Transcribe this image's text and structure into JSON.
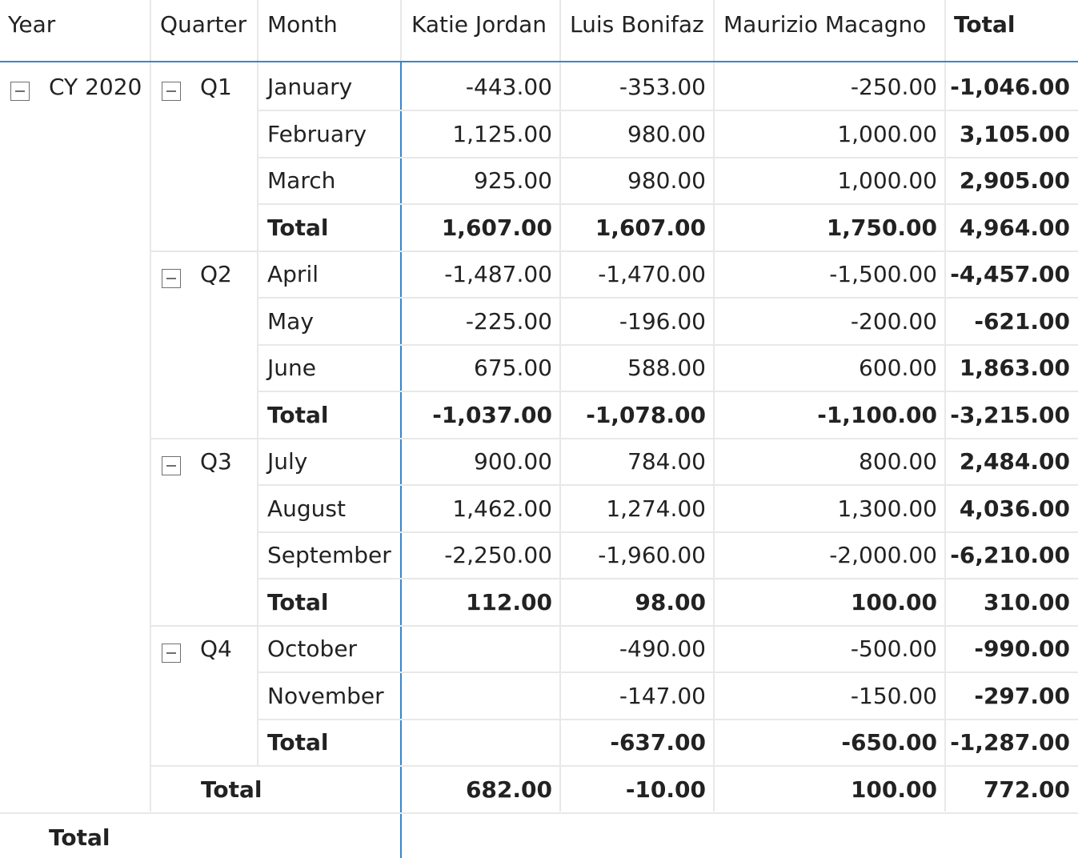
{
  "headers": {
    "year": "Year",
    "quarter": "Quarter",
    "month": "Month",
    "katie": "Katie Jordan",
    "luis": "Luis Bonifaz",
    "maurizio": "Maurizio Macagno",
    "total": "Total"
  },
  "year_label": "CY 2020",
  "quarters": [
    {
      "label": "Q1",
      "months": [
        {
          "month": "January",
          "katie": "-443.00",
          "luis": "-353.00",
          "maurizio": "-250.00",
          "total": "-1,046.00"
        },
        {
          "month": "February",
          "katie": "1,125.00",
          "luis": "980.00",
          "maurizio": "1,000.00",
          "total": "3,105.00"
        },
        {
          "month": "March",
          "katie": "925.00",
          "luis": "980.00",
          "maurizio": "1,000.00",
          "total": "2,905.00"
        }
      ],
      "subtotal": {
        "label": "Total",
        "katie": "1,607.00",
        "luis": "1,607.00",
        "maurizio": "1,750.00",
        "total": "4,964.00"
      }
    },
    {
      "label": "Q2",
      "months": [
        {
          "month": "April",
          "katie": "-1,487.00",
          "luis": "-1,470.00",
          "maurizio": "-1,500.00",
          "total": "-4,457.00"
        },
        {
          "month": "May",
          "katie": "-225.00",
          "luis": "-196.00",
          "maurizio": "-200.00",
          "total": "-621.00"
        },
        {
          "month": "June",
          "katie": "675.00",
          "luis": "588.00",
          "maurizio": "600.00",
          "total": "1,863.00"
        }
      ],
      "subtotal": {
        "label": "Total",
        "katie": "-1,037.00",
        "luis": "-1,078.00",
        "maurizio": "-1,100.00",
        "total": "-3,215.00"
      }
    },
    {
      "label": "Q3",
      "months": [
        {
          "month": "July",
          "katie": "900.00",
          "luis": "784.00",
          "maurizio": "800.00",
          "total": "2,484.00"
        },
        {
          "month": "August",
          "katie": "1,462.00",
          "luis": "1,274.00",
          "maurizio": "1,300.00",
          "total": "4,036.00"
        },
        {
          "month": "September",
          "katie": "-2,250.00",
          "luis": "-1,960.00",
          "maurizio": "-2,000.00",
          "total": "-6,210.00"
        }
      ],
      "subtotal": {
        "label": "Total",
        "katie": "112.00",
        "luis": "98.00",
        "maurizio": "100.00",
        "total": "310.00"
      }
    },
    {
      "label": "Q4",
      "months": [
        {
          "month": "October",
          "katie": "",
          "luis": "-490.00",
          "maurizio": "-500.00",
          "total": "-990.00"
        },
        {
          "month": "November",
          "katie": "",
          "luis": "-147.00",
          "maurizio": "-150.00",
          "total": "-297.00"
        }
      ],
      "subtotal": {
        "label": "Total",
        "katie": "",
        "luis": "-637.00",
        "maurizio": "-650.00",
        "total": "-1,287.00"
      }
    }
  ],
  "year_total": {
    "label": "Total",
    "katie": "682.00",
    "luis": "-10.00",
    "maurizio": "100.00",
    "total": "772.00"
  },
  "grand_total": {
    "label": "Total"
  },
  "colors": {
    "accent": "#3a85c8",
    "gridline": "#e8e8e8",
    "text": "#222222",
    "toggle_border": "#6f6f6f"
  }
}
